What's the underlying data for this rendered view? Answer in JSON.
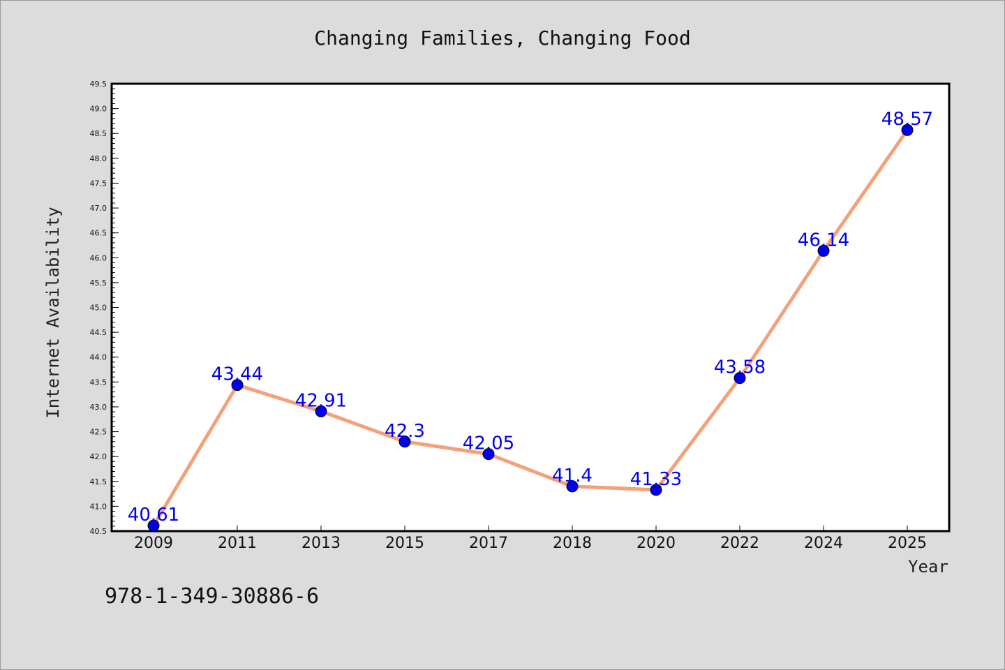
{
  "chart_data": {
    "type": "line",
    "title": "Changing Families, Changing Food",
    "xlabel": "Year",
    "ylabel": "Internet Availability",
    "categories": [
      "2009",
      "2011",
      "2013",
      "2015",
      "2017",
      "2018",
      "2020",
      "2022",
      "2024",
      "2025"
    ],
    "values": [
      40.61,
      43.44,
      42.91,
      42.3,
      42.05,
      41.4,
      41.33,
      43.58,
      46.14,
      48.57
    ],
    "data_labels": [
      "40.61",
      "43.44",
      "42.91",
      "42.3",
      "42.05",
      "41.4",
      "41.33",
      "43.58",
      "46.14",
      "48.57"
    ],
    "ylim": [
      40.5,
      49.5
    ],
    "yticks": [
      "40.5",
      "41.0",
      "41.5",
      "42.0",
      "42.5",
      "43.0",
      "43.5",
      "44.0",
      "44.5",
      "45.0",
      "45.5",
      "46.0",
      "46.5",
      "47.0",
      "47.5",
      "48.0",
      "48.5",
      "49.0",
      "49.5"
    ],
    "grid": false,
    "legend": "none",
    "colors": {
      "line": "#f4a07a",
      "marker": "#0000ee",
      "label": "#0000ee",
      "background": "#dcdcdc",
      "plot_background": "#ffffff"
    }
  },
  "footer": {
    "isbn": "978-1-349-30886-6"
  }
}
